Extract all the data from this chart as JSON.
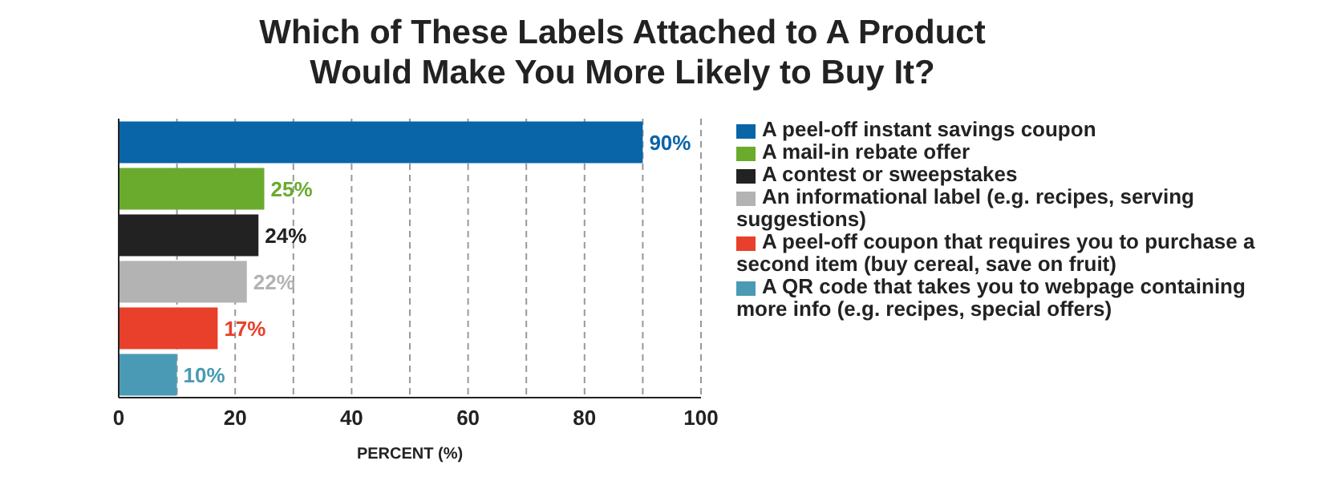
{
  "chart_data": {
    "type": "bar",
    "orientation": "horizontal",
    "title": "Which of These Labels Attached to A Product Would Make You More Likely to Buy It?",
    "xlabel": "PERCENT (%)",
    "categories": [
      null,
      null,
      null,
      null,
      null,
      null
    ],
    "series": [
      {
        "name": "A peel-off instant savings coupon",
        "color": "#0a64a8",
        "values": [
          90,
          null,
          null,
          null,
          null,
          null
        ],
        "value_labels": [
          "90%",
          null,
          null,
          null,
          null,
          null
        ]
      },
      {
        "name": "A mail-in rebate offer",
        "color": "#6aab2e",
        "values": [
          null,
          25,
          null,
          null,
          null,
          null
        ],
        "value_labels": [
          null,
          "25%",
          null,
          null,
          null,
          null
        ]
      },
      {
        "name": "A contest or sweepstakes",
        "color": "#222222",
        "values": [
          null,
          null,
          24,
          null,
          null,
          null
        ],
        "value_labels": [
          null,
          null,
          "24%",
          null,
          null,
          null
        ]
      },
      {
        "name": "An informational label (e.g. recipes, serving suggestions)",
        "color": "#b3b3b3",
        "values": [
          null,
          null,
          null,
          22,
          null,
          null
        ],
        "value_labels": [
          null,
          null,
          null,
          "22%",
          null,
          null
        ]
      },
      {
        "name": "A peel-off coupon that requires you to purchase a second item (buy cereal, save on fruit)",
        "color": "#e8402a",
        "values": [
          null,
          null,
          null,
          null,
          17,
          null
        ],
        "value_labels": [
          null,
          null,
          null,
          null,
          "17%",
          null
        ]
      },
      {
        "name": "A QR code that takes you to webpage containing more info (e.g. recipes, special offers)",
        "color": "#4a9ab5",
        "values": [
          null,
          null,
          null,
          null,
          null,
          10
        ],
        "value_labels": [
          null,
          null,
          null,
          null,
          null,
          "10%"
        ]
      }
    ],
    "xlim": [
      0,
      100
    ],
    "xticks": [
      0,
      {
        "value": 10,
        "label": null
      },
      20,
      {
        "value": 30,
        "label": null
      },
      40,
      {
        "value": 50,
        "label": null
      },
      60,
      {
        "value": 70,
        "label": null
      },
      80,
      {
        "value": 90,
        "label": null
      },
      100
    ],
    "grid": "x",
    "legend": "right"
  }
}
